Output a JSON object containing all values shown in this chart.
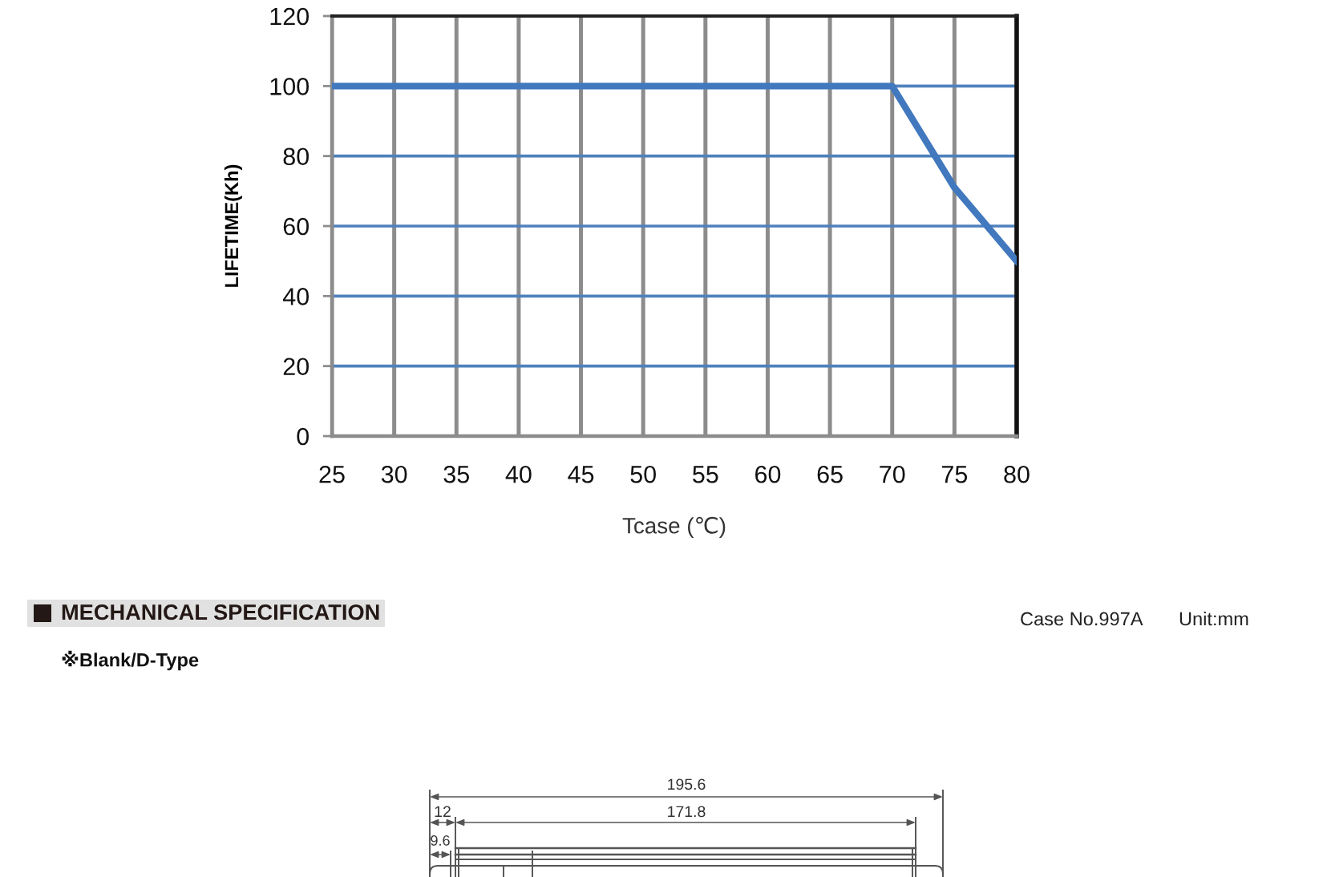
{
  "chart_data": {
    "type": "line",
    "xlabel": "Tcase (℃)",
    "ylabel": "LIFETIME(Kh)",
    "x": [
      25,
      70,
      75,
      80
    ],
    "series": [
      {
        "color": "#4178be",
        "values": [
          100,
          100,
          71,
          50
        ]
      }
    ],
    "xlim": [
      25,
      80
    ],
    "ylim": [
      0,
      120
    ],
    "xticks": [
      25,
      30,
      35,
      40,
      45,
      50,
      55,
      60,
      65,
      70,
      75,
      80
    ],
    "yticks": [
      0,
      20,
      40,
      60,
      80,
      100,
      120
    ],
    "grid": true,
    "marker": "none",
    "line_style": "solid",
    "annotations": [
      "MECHANICAL SPECIFICATION",
      "※Blank/D-Type",
      "Case No.997A",
      "Unit:mm",
      "195.6",
      "12",
      "171.8",
      "9.6"
    ]
  }
}
